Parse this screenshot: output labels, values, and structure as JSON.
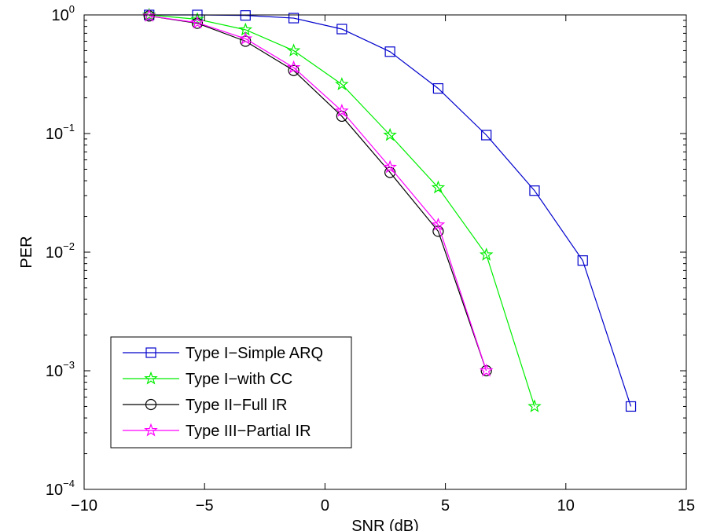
{
  "chart_data": {
    "type": "line",
    "xlabel": "SNR (dB)",
    "ylabel": "PER",
    "xlim": [
      -10,
      15
    ],
    "ylim": [
      0.0001,
      1
    ],
    "yscale": "log",
    "x_ticks": [
      -10,
      -5,
      0,
      5,
      10,
      15
    ],
    "x_tick_labels": [
      "−10",
      "−5",
      "0",
      "5",
      "10",
      "15"
    ],
    "y_ticks": [
      {
        "value": 1,
        "base": "10",
        "exp": "0"
      },
      {
        "value": 0.1,
        "base": "10",
        "exp": "−1"
      },
      {
        "value": 0.01,
        "base": "10",
        "exp": "−2"
      },
      {
        "value": 0.001,
        "base": "10",
        "exp": "−3"
      },
      {
        "value": 0.0001,
        "base": "10",
        "exp": "−4"
      }
    ],
    "grid": false,
    "legend_position": "bottom-left",
    "series": [
      {
        "name": "Type I−Simple ARQ",
        "color": "#0000cc",
        "marker": "square",
        "x": [
          -7.3,
          -5.3,
          -3.3,
          -1.3,
          0.7,
          2.7,
          4.7,
          6.7,
          8.7,
          10.7,
          12.7
        ],
        "y": [
          1.0,
          1.0,
          0.99,
          0.94,
          0.76,
          0.49,
          0.24,
          0.097,
          0.033,
          0.0085,
          0.0005
        ]
      },
      {
        "name": "Type I−with CC",
        "color": "#00ee00",
        "marker": "star",
        "x": [
          -7.3,
          -5.3,
          -3.3,
          -1.3,
          0.7,
          2.7,
          4.7,
          6.7,
          8.7
        ],
        "y": [
          1.0,
          0.92,
          0.75,
          0.5,
          0.26,
          0.097,
          0.035,
          0.0095,
          0.0005
        ]
      },
      {
        "name": "Type II−Full IR",
        "color": "#000000",
        "marker": "circle",
        "x": [
          -7.3,
          -5.3,
          -3.3,
          -1.3,
          0.7,
          2.7,
          4.7,
          6.7
        ],
        "y": [
          0.98,
          0.85,
          0.6,
          0.34,
          0.14,
          0.047,
          0.015,
          0.001
        ]
      },
      {
        "name": "Type III−Partial IR",
        "color": "#ff00ff",
        "marker": "star",
        "x": [
          -7.3,
          -5.3,
          -3.3,
          -1.3,
          0.7,
          2.7,
          4.7,
          6.7
        ],
        "y": [
          0.98,
          0.86,
          0.63,
          0.36,
          0.155,
          0.052,
          0.017,
          0.001
        ]
      }
    ]
  }
}
